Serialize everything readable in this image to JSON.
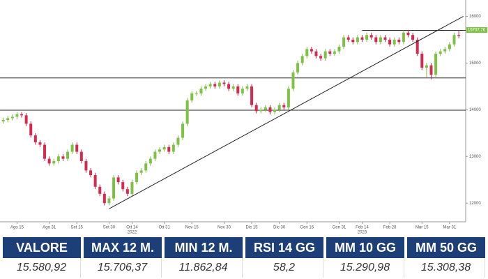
{
  "chart_data": {
    "type": "candlestick",
    "xlim": [
      -0.7,
      100.5
    ],
    "ylim": [
      11600,
      16350
    ],
    "yticks": [
      12000,
      13000,
      14000,
      15000,
      16000
    ],
    "xticks": [
      {
        "value": 3,
        "label": "Ago 15"
      },
      {
        "value": 10,
        "label": "Ago 31"
      },
      {
        "value": 16,
        "label": "Set 15"
      },
      {
        "value": 23,
        "label": "Set 30"
      },
      {
        "value": 28,
        "label": "Ott 14",
        "year": "2022"
      },
      {
        "value": 35,
        "label": "Ott 31"
      },
      {
        "value": 41,
        "label": "Nov 15"
      },
      {
        "value": 48,
        "label": "Nov 30"
      },
      {
        "value": 54,
        "label": "Dic 15"
      },
      {
        "value": 60,
        "label": "Dic 30"
      },
      {
        "value": 66,
        "label": "Gen 16"
      },
      {
        "value": 73,
        "label": "Gen 31"
      },
      {
        "value": 78,
        "label": "Feb 14",
        "year": "2023"
      },
      {
        "value": 84,
        "label": "Feb 28"
      },
      {
        "value": 91,
        "label": "Mar 15"
      },
      {
        "value": 97,
        "label": "Mar 31"
      }
    ],
    "up_color": "#7dc243",
    "down_color": "#d42a4f",
    "open": [
      13750,
      13780,
      13820,
      13850,
      13900,
      13880,
      13700,
      13450,
      13300,
      13250,
      12950,
      12850,
      12900,
      13000,
      12950,
      13100,
      13250,
      13100,
      12900,
      12700,
      12600,
      12350,
      12200,
      12000,
      12100,
      12550,
      12450,
      12300,
      12200,
      12450,
      12650,
      12700,
      12850,
      12950,
      13100,
      13150,
      13200,
      13100,
      13250,
      13400,
      13700,
      14200,
      14350,
      14350,
      14450,
      14500,
      14550,
      14500,
      14580,
      14550,
      14450,
      14500,
      14350,
      14450,
      14500,
      14100,
      13970,
      14000,
      14050,
      13950,
      14000,
      14100,
      14050,
      14450,
      14800,
      15000,
      15150,
      15300,
      15250,
      15150,
      15100,
      15250,
      15200,
      15250,
      15350,
      15550,
      15500,
      15450,
      15550,
      15500,
      15600,
      15550,
      15450,
      15550,
      15500,
      15400,
      15500,
      15450,
      15650,
      15600,
      15500,
      15200,
      14900,
      14950,
      14750,
      15200,
      15250,
      15300,
      15400,
      15600
    ],
    "high": [
      13830,
      13870,
      13900,
      13950,
      13950,
      13930,
      13750,
      13500,
      13350,
      13300,
      13000,
      12950,
      13050,
      13050,
      13150,
      13300,
      13300,
      13150,
      12950,
      12750,
      12650,
      12400,
      12250,
      12150,
      12600,
      12600,
      12500,
      12350,
      12500,
      12700,
      12750,
      12900,
      13000,
      13150,
      13200,
      13250,
      13250,
      13300,
      13450,
      13750,
      14250,
      14400,
      14400,
      14500,
      14550,
      14600,
      14600,
      14630,
      14630,
      14600,
      14550,
      14550,
      14500,
      14550,
      14550,
      14150,
      14050,
      14100,
      14100,
      14050,
      14150,
      14150,
      14500,
      14850,
      15050,
      15200,
      15350,
      15350,
      15300,
      15200,
      15300,
      15300,
      15300,
      15400,
      15600,
      15600,
      15550,
      15600,
      15600,
      15650,
      15650,
      15600,
      15600,
      15600,
      15550,
      15550,
      15550,
      15700,
      15700,
      15650,
      15550,
      15250,
      15000,
      15000,
      15250,
      15300,
      15350,
      15450,
      15650,
      15700
    ],
    "low": [
      13700,
      13730,
      13770,
      13800,
      13830,
      13650,
      13400,
      13250,
      13200,
      12900,
      12800,
      12800,
      12850,
      12900,
      12900,
      13050,
      13050,
      12850,
      12650,
      12550,
      12300,
      12150,
      11950,
      11950,
      12050,
      12400,
      12250,
      12150,
      12150,
      12400,
      12600,
      12650,
      12800,
      12900,
      13050,
      13100,
      13050,
      13050,
      13200,
      13350,
      13650,
      14150,
      14300,
      14300,
      14400,
      14450,
      14450,
      14450,
      14500,
      14400,
      14400,
      14300,
      14300,
      14400,
      14050,
      13920,
      13920,
      13950,
      13900,
      13900,
      13950,
      14000,
      14000,
      14400,
      14750,
      14950,
      15100,
      15200,
      15100,
      15050,
      15050,
      15150,
      15150,
      15200,
      15300,
      15450,
      15400,
      15400,
      15450,
      15450,
      15500,
      15400,
      15400,
      15450,
      15350,
      15350,
      15400,
      15400,
      15550,
      15450,
      15150,
      14850,
      14700,
      14650,
      14700,
      15150,
      15200,
      15250,
      15350,
      15530
    ],
    "close": [
      13780,
      13820,
      13850,
      13900,
      13880,
      13700,
      13450,
      13300,
      13250,
      12950,
      12850,
      12900,
      13000,
      12950,
      13100,
      13250,
      13100,
      12900,
      12700,
      12600,
      12350,
      12200,
      12000,
      12100,
      12550,
      12450,
      12300,
      12200,
      12450,
      12650,
      12700,
      12850,
      12950,
      13100,
      13150,
      13200,
      13100,
      13250,
      13400,
      13700,
      14200,
      14350,
      14350,
      14450,
      14500,
      14550,
      14500,
      14580,
      14550,
      14450,
      14500,
      14350,
      14450,
      14500,
      14100,
      13970,
      14000,
      14050,
      13950,
      14000,
      14100,
      14050,
      14450,
      14800,
      15000,
      15150,
      15300,
      15250,
      15150,
      15100,
      15250,
      15200,
      15250,
      15350,
      15550,
      15500,
      15450,
      15550,
      15500,
      15600,
      15550,
      15450,
      15550,
      15500,
      15400,
      15500,
      15450,
      15650,
      15600,
      15500,
      15200,
      14900,
      14950,
      14750,
      15200,
      15250,
      15300,
      15400,
      15600,
      15580
    ],
    "levels": [
      {
        "value": 15700,
        "from": 78
      },
      {
        "value": 14680
      },
      {
        "value": 13990
      }
    ],
    "trendline": {
      "x": [
        23,
        100
      ],
      "y": [
        11880,
        16000
      ]
    },
    "price_tag": {
      "value": 15707.76,
      "label": "15707,76"
    }
  },
  "table": {
    "columns": [
      "VALORE",
      "MAX 12 M.",
      "MIN 12 M.",
      "RSI 14 GG",
      "MM 10 GG",
      "MM 50 GG"
    ],
    "rows": [
      [
        "15.580,92",
        "15.706,37",
        "11.862,84",
        "58,2",
        "15.290,98",
        "15.308,38"
      ]
    ]
  }
}
